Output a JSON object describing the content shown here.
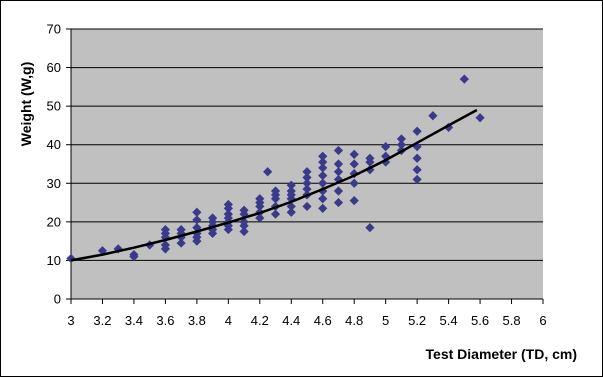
{
  "chart_data": {
    "type": "scatter",
    "title": "",
    "xlabel": "Test Diameter (TD, cm)",
    "ylabel": "Weight (W,g)",
    "xlim": [
      3,
      6
    ],
    "ylim": [
      0,
      70
    ],
    "x_ticks": [
      "3",
      "3.2",
      "3.4",
      "3.6",
      "3.8",
      "4",
      "4.2",
      "4.4",
      "4.6",
      "4.8",
      "5",
      "5.2",
      "5.4",
      "5.6",
      "5.8",
      "6"
    ],
    "y_ticks": [
      "0",
      "10",
      "20",
      "30",
      "40",
      "50",
      "60",
      "70"
    ],
    "grid": "horizontal",
    "legend": "none",
    "colors": {
      "plot_background": "#c0c0c0",
      "marker": "#3b3a8a",
      "trendline": "#000000",
      "gridline": "#000000"
    },
    "series": [
      {
        "kind": "points",
        "marker": "diamond",
        "points": [
          [
            3.0,
            10.5
          ],
          [
            3.2,
            12.5
          ],
          [
            3.3,
            13
          ],
          [
            3.4,
            11.5
          ],
          [
            3.4,
            11
          ],
          [
            3.5,
            14
          ],
          [
            3.6,
            13
          ],
          [
            3.6,
            14
          ],
          [
            3.6,
            16
          ],
          [
            3.6,
            17
          ],
          [
            3.6,
            18
          ],
          [
            3.7,
            14.5
          ],
          [
            3.7,
            16
          ],
          [
            3.7,
            17
          ],
          [
            3.7,
            18
          ],
          [
            3.8,
            15
          ],
          [
            3.8,
            16
          ],
          [
            3.8,
            17
          ],
          [
            3.8,
            18.5
          ],
          [
            3.8,
            20.5
          ],
          [
            3.8,
            22.5
          ],
          [
            3.9,
            17
          ],
          [
            3.9,
            18
          ],
          [
            3.9,
            19
          ],
          [
            3.9,
            20
          ],
          [
            3.9,
            21
          ],
          [
            4.0,
            18
          ],
          [
            4.0,
            19
          ],
          [
            4.0,
            20
          ],
          [
            4.0,
            21
          ],
          [
            4.0,
            22
          ],
          [
            4.0,
            23.5
          ],
          [
            4.0,
            24.5
          ],
          [
            4.1,
            17.5
          ],
          [
            4.1,
            19
          ],
          [
            4.1,
            20
          ],
          [
            4.1,
            22
          ],
          [
            4.1,
            23
          ],
          [
            4.2,
            21
          ],
          [
            4.2,
            22.5
          ],
          [
            4.2,
            24
          ],
          [
            4.2,
            25
          ],
          [
            4.2,
            26
          ],
          [
            4.25,
            33
          ],
          [
            4.3,
            22
          ],
          [
            4.3,
            24
          ],
          [
            4.3,
            26
          ],
          [
            4.3,
            27
          ],
          [
            4.3,
            28
          ],
          [
            4.4,
            22.5
          ],
          [
            4.4,
            24
          ],
          [
            4.4,
            26
          ],
          [
            4.4,
            27
          ],
          [
            4.4,
            28
          ],
          [
            4.4,
            29.5
          ],
          [
            4.5,
            24
          ],
          [
            4.5,
            27
          ],
          [
            4.5,
            28.5
          ],
          [
            4.5,
            30
          ],
          [
            4.5,
            31.5
          ],
          [
            4.5,
            33
          ],
          [
            4.6,
            23.5
          ],
          [
            4.6,
            26
          ],
          [
            4.6,
            28
          ],
          [
            4.6,
            30
          ],
          [
            4.6,
            32
          ],
          [
            4.6,
            34
          ],
          [
            4.6,
            35.5
          ],
          [
            4.6,
            37
          ],
          [
            4.7,
            25
          ],
          [
            4.7,
            28
          ],
          [
            4.7,
            31
          ],
          [
            4.7,
            33
          ],
          [
            4.7,
            35
          ],
          [
            4.7,
            38.5
          ],
          [
            4.8,
            25.5
          ],
          [
            4.8,
            30
          ],
          [
            4.8,
            32.5
          ],
          [
            4.8,
            35
          ],
          [
            4.8,
            37.5
          ],
          [
            4.9,
            18.5
          ],
          [
            4.9,
            33.5
          ],
          [
            4.9,
            35.5
          ],
          [
            4.9,
            36.5
          ],
          [
            5.0,
            35.5
          ],
          [
            5.0,
            37
          ],
          [
            5.0,
            39.5
          ],
          [
            5.1,
            38.5
          ],
          [
            5.1,
            40
          ],
          [
            5.1,
            41.5
          ],
          [
            5.2,
            31
          ],
          [
            5.2,
            33.5
          ],
          [
            5.2,
            36.5
          ],
          [
            5.2,
            39.5
          ],
          [
            5.2,
            43.5
          ],
          [
            5.3,
            47.5
          ],
          [
            5.4,
            44.5
          ],
          [
            5.5,
            57
          ],
          [
            5.6,
            47
          ]
        ]
      },
      {
        "kind": "trendline",
        "points": [
          [
            3.0,
            10
          ],
          [
            3.2,
            11.5
          ],
          [
            3.4,
            13.3
          ],
          [
            3.6,
            15.3
          ],
          [
            3.8,
            17.5
          ],
          [
            4.0,
            19.8
          ],
          [
            4.2,
            22.3
          ],
          [
            4.4,
            25.2
          ],
          [
            4.6,
            28.5
          ],
          [
            4.8,
            32
          ],
          [
            5.0,
            36
          ],
          [
            5.2,
            40.5
          ],
          [
            5.4,
            45
          ],
          [
            5.58,
            49
          ]
        ]
      }
    ]
  }
}
